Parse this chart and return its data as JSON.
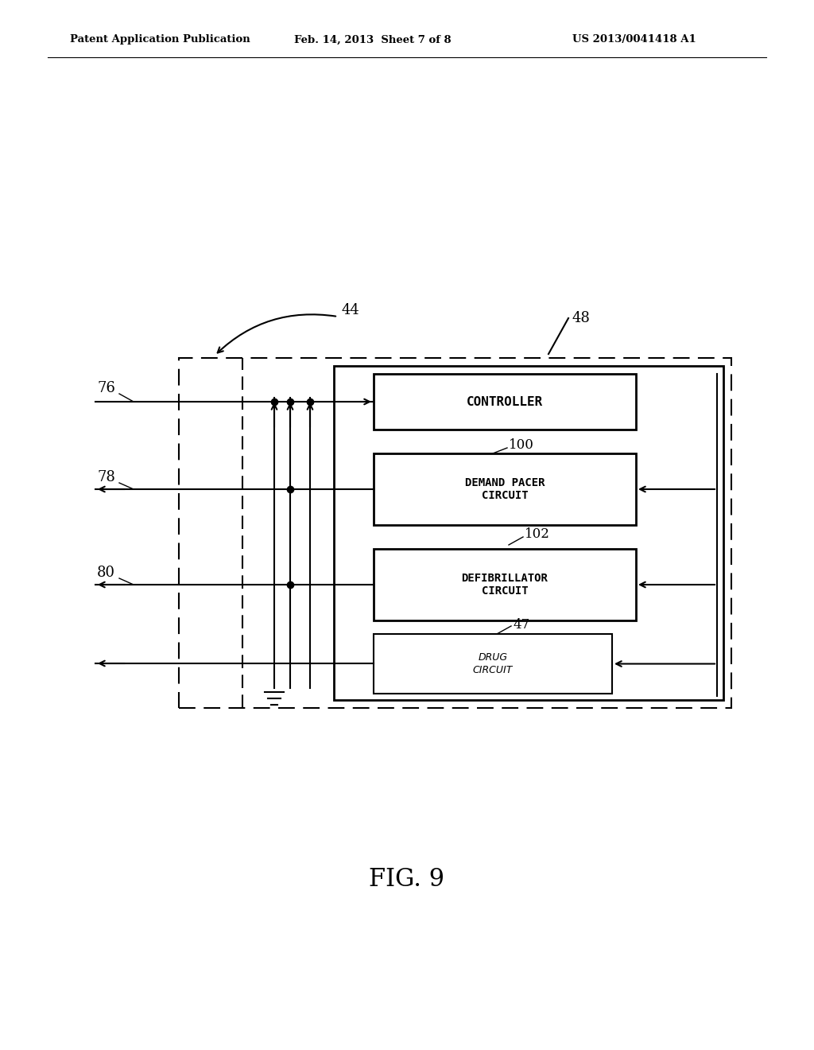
{
  "title": "FIG. 9",
  "header_left": "Patent Application Publication",
  "header_mid": "Feb. 14, 2013  Sheet 7 of 8",
  "header_right": "US 2013/0041418 A1",
  "background_color": "#ffffff",
  "text_color": "#000000",
  "label_44": "44",
  "label_48": "48",
  "label_76": "76",
  "label_78": "78",
  "label_80": "80",
  "label_100": "100",
  "label_102": "102",
  "label_47": "47",
  "box_controller": "CONTROLLER",
  "box_demand": "DEMAND PACER\nCIRCUIT",
  "box_defib": "DEFIBRILLATOR\nCIRCUIT",
  "box_drug": "DRUG\nCIRCUIT"
}
